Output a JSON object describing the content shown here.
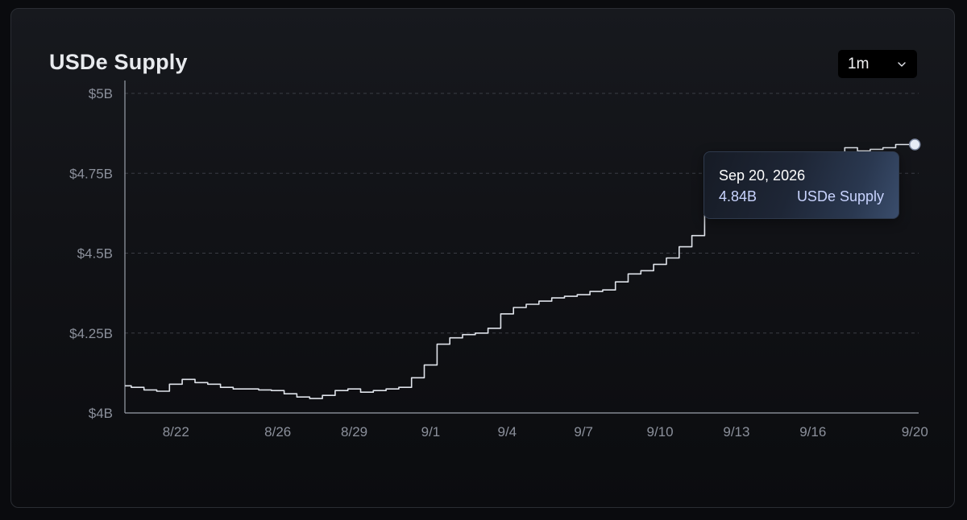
{
  "title": "USDe Supply",
  "range_selector": {
    "selected": "1m",
    "icon": "chevron-down-icon"
  },
  "tooltip": {
    "date": "Sep 20, 2026",
    "value": "4.84B",
    "series": "USDe Supply"
  },
  "colors": {
    "line": "#dfe3ea",
    "grid": "#3a3d44",
    "axis": "#9aa0aa",
    "tick_text": "#8b909b",
    "marker": "#e6ebf5"
  },
  "chart_data": {
    "type": "line",
    "title": "USDe Supply",
    "xlabel": "",
    "ylabel": "",
    "grid": true,
    "y_unit": "$B",
    "ylim": [
      4.0,
      5.0
    ],
    "y_ticks": [
      4.0,
      4.25,
      4.5,
      4.75,
      5.0
    ],
    "y_tick_labels": [
      "$4B",
      "$4.25B",
      "$4.5B",
      "$4.75B",
      "$5B"
    ],
    "x_tick_labels": [
      "8/22",
      "8/26",
      "8/29",
      "9/1",
      "9/4",
      "9/7",
      "9/10",
      "9/13",
      "9/16",
      "9/20"
    ],
    "x_tick_days": [
      22,
      26,
      29,
      32,
      35,
      38,
      41,
      44,
      47,
      51
    ],
    "x_unit": "day of August 2026 (9/1 = 32)",
    "series": [
      {
        "name": "USDe Supply",
        "x": [
          20.0,
          20.5,
          21.0,
          21.5,
          22.0,
          22.5,
          23.0,
          23.5,
          24.0,
          24.5,
          25.0,
          25.5,
          26.0,
          26.5,
          27.0,
          27.5,
          28.0,
          28.5,
          29.0,
          29.5,
          30.0,
          30.5,
          31.0,
          31.5,
          32.0,
          32.5,
          33.0,
          33.5,
          34.0,
          34.5,
          35.0,
          35.5,
          36.0,
          36.5,
          37.0,
          37.5,
          38.0,
          38.5,
          39.0,
          39.5,
          40.0,
          40.5,
          41.0,
          41.5,
          42.0,
          42.5,
          43.0,
          43.5,
          44.0,
          44.5,
          45.0,
          45.5,
          46.0,
          46.5,
          47.0,
          47.5,
          48.0,
          48.5,
          49.0,
          49.5,
          50.0,
          50.5,
          51.0
        ],
        "y": [
          4.085,
          4.08,
          4.072,
          4.068,
          4.09,
          4.105,
          4.095,
          4.09,
          4.08,
          4.075,
          4.075,
          4.072,
          4.07,
          4.06,
          4.05,
          4.045,
          4.055,
          4.07,
          4.075,
          4.065,
          4.07,
          4.075,
          4.08,
          4.11,
          4.15,
          4.215,
          4.235,
          4.245,
          4.25,
          4.265,
          4.31,
          4.33,
          4.34,
          4.35,
          4.36,
          4.365,
          4.37,
          4.38,
          4.385,
          4.41,
          4.435,
          4.445,
          4.465,
          4.485,
          4.52,
          4.555,
          4.625,
          4.625,
          4.66,
          4.68,
          4.69,
          4.7,
          4.72,
          4.74,
          4.76,
          4.785,
          4.805,
          4.83,
          4.82,
          4.825,
          4.83,
          4.84,
          4.84
        ]
      }
    ],
    "highlight_point": {
      "x": 51.0,
      "y": 4.84
    }
  }
}
